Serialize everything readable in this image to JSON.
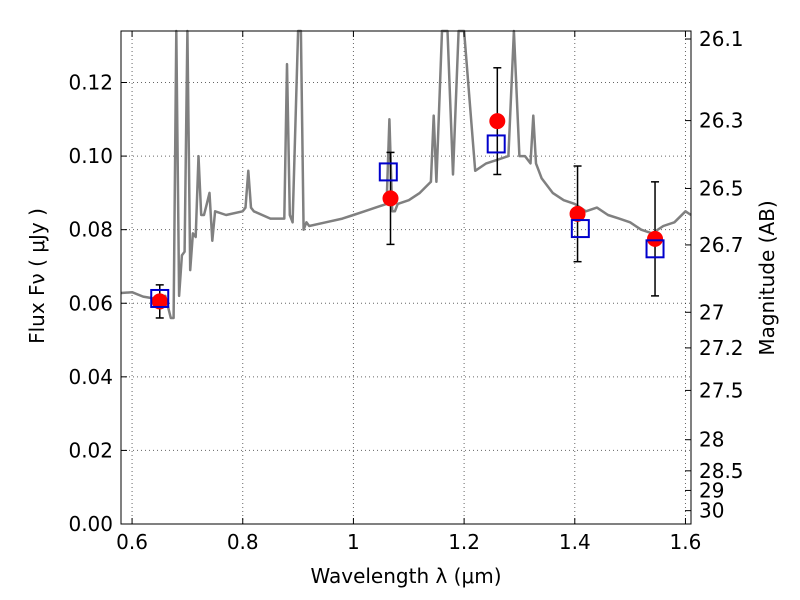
{
  "chart_data": {
    "type": "scatter",
    "xlabel": "Wavelength  λ (μm)",
    "ylabel": "Flux  Fν  ( μJy )",
    "y2label": "Magnitude (AB)",
    "xlim": [
      0.58,
      1.61
    ],
    "ylim": [
      0.0,
      0.134
    ],
    "grid": true,
    "x_ticks": [
      0.6,
      0.8,
      1.0,
      1.2,
      1.4,
      1.6
    ],
    "x_tick_labels": [
      "0.6",
      "0.8",
      "1",
      "1.2",
      "1.4",
      "1.6"
    ],
    "y_ticks": [
      0.0,
      0.02,
      0.04,
      0.06,
      0.08,
      0.1,
      0.12
    ],
    "y_tick_labels": [
      "0.00",
      "0.02",
      "0.04",
      "0.06",
      "0.08",
      "0.10",
      "0.12"
    ],
    "mag_ticks": [
      "26.1",
      "26.3",
      "26.5",
      "26.7",
      "27",
      "27.2",
      "27.5",
      "28",
      "28.5",
      "29",
      "30"
    ],
    "colors": {
      "model": "#808080",
      "observed": "#ff0000",
      "synthetic": "#0000cc",
      "errorbar": "#000000"
    },
    "series": [
      {
        "style": "model-line",
        "x": [
          0.58,
          0.6,
          0.62,
          0.64,
          0.66,
          0.67,
          0.675,
          0.68,
          0.685,
          0.69,
          0.695,
          0.7,
          0.705,
          0.71,
          0.715,
          0.72,
          0.725,
          0.73,
          0.735,
          0.74,
          0.745,
          0.75,
          0.77,
          0.8,
          0.805,
          0.81,
          0.815,
          0.82,
          0.85,
          0.875,
          0.88,
          0.885,
          0.89,
          0.9,
          0.905,
          0.91,
          0.915,
          0.92,
          0.95,
          0.98,
          1.0,
          1.02,
          1.04,
          1.06,
          1.065,
          1.07,
          1.075,
          1.08,
          1.1,
          1.12,
          1.14,
          1.145,
          1.15,
          1.16,
          1.17,
          1.18,
          1.19,
          1.2,
          1.22,
          1.24,
          1.26,
          1.28,
          1.29,
          1.3,
          1.31,
          1.32,
          1.325,
          1.33,
          1.34,
          1.36,
          1.38,
          1.4,
          1.42,
          1.44,
          1.46,
          1.48,
          1.5,
          1.52,
          1.54,
          1.56,
          1.58,
          1.6,
          1.61
        ],
        "y": [
          0.0628,
          0.063,
          0.0618,
          0.0613,
          0.062,
          0.056,
          0.056,
          0.134,
          0.062,
          0.073,
          0.074,
          0.134,
          0.069,
          0.079,
          0.078,
          0.1,
          0.084,
          0.084,
          0.087,
          0.09,
          0.077,
          0.085,
          0.084,
          0.085,
          0.086,
          0.096,
          0.086,
          0.085,
          0.083,
          0.083,
          0.125,
          0.084,
          0.082,
          0.134,
          0.134,
          0.08,
          0.082,
          0.081,
          0.082,
          0.083,
          0.084,
          0.085,
          0.086,
          0.087,
          0.11,
          0.085,
          0.085,
          0.087,
          0.088,
          0.09,
          0.093,
          0.111,
          0.093,
          0.134,
          0.134,
          0.095,
          0.134,
          0.134,
          0.096,
          0.098,
          0.099,
          0.1,
          0.134,
          0.1,
          0.1,
          0.098,
          0.111,
          0.098,
          0.094,
          0.09,
          0.088,
          0.087,
          0.085,
          0.086,
          0.084,
          0.083,
          0.082,
          0.08,
          0.079,
          0.081,
          0.082,
          0.085,
          0.084
        ]
      },
      {
        "style": "observed",
        "x": [
          0.65,
          1.067,
          1.26,
          1.405,
          1.545
        ],
        "y": [
          0.0605,
          0.0885,
          0.1095,
          0.0843,
          0.0775
        ],
        "yerr": [
          0.0045,
          0.0125,
          0.0145,
          0.013,
          0.0155
        ]
      },
      {
        "style": "synthetic",
        "x": [
          0.65,
          1.063,
          1.258,
          1.41,
          1.545
        ],
        "y": [
          0.0613,
          0.0957,
          0.1033,
          0.0803,
          0.0748
        ]
      }
    ]
  }
}
